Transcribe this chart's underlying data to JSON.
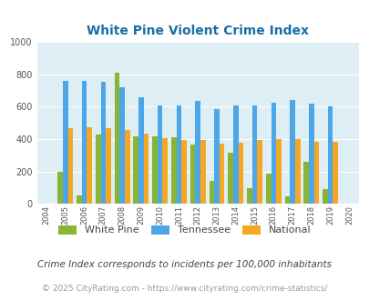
{
  "title": "White Pine Violent Crime Index",
  "years": [
    2004,
    2005,
    2006,
    2007,
    2008,
    2009,
    2010,
    2011,
    2012,
    2013,
    2014,
    2015,
    2016,
    2017,
    2018,
    2019,
    2020
  ],
  "white_pine": [
    0,
    200,
    50,
    430,
    810,
    420,
    415,
    410,
    365,
    140,
    315,
    100,
    185,
    47,
    260,
    90,
    0
  ],
  "tennessee": [
    0,
    760,
    760,
    755,
    720,
    660,
    607,
    608,
    638,
    585,
    608,
    608,
    625,
    643,
    618,
    600,
    0
  ],
  "national": [
    0,
    468,
    475,
    468,
    458,
    432,
    406,
    394,
    395,
    370,
    376,
    396,
    401,
    398,
    383,
    383,
    0
  ],
  "white_pine_color": "#8ab435",
  "tennessee_color": "#4da6e8",
  "national_color": "#f5a623",
  "bg_color": "#ddeef5",
  "ylim": [
    0,
    1000
  ],
  "yticks": [
    0,
    200,
    400,
    600,
    800,
    1000
  ],
  "legend_labels": [
    "White Pine",
    "Tennessee",
    "National"
  ],
  "footnote1": "Crime Index corresponds to incidents per 100,000 inhabitants",
  "footnote2": "© 2025 CityRating.com - https://www.cityrating.com/crime-statistics/",
  "title_color": "#1a6ea8",
  "footnote1_color": "#444444",
  "footnote2_color": "#999999",
  "url_color": "#4da6e8"
}
